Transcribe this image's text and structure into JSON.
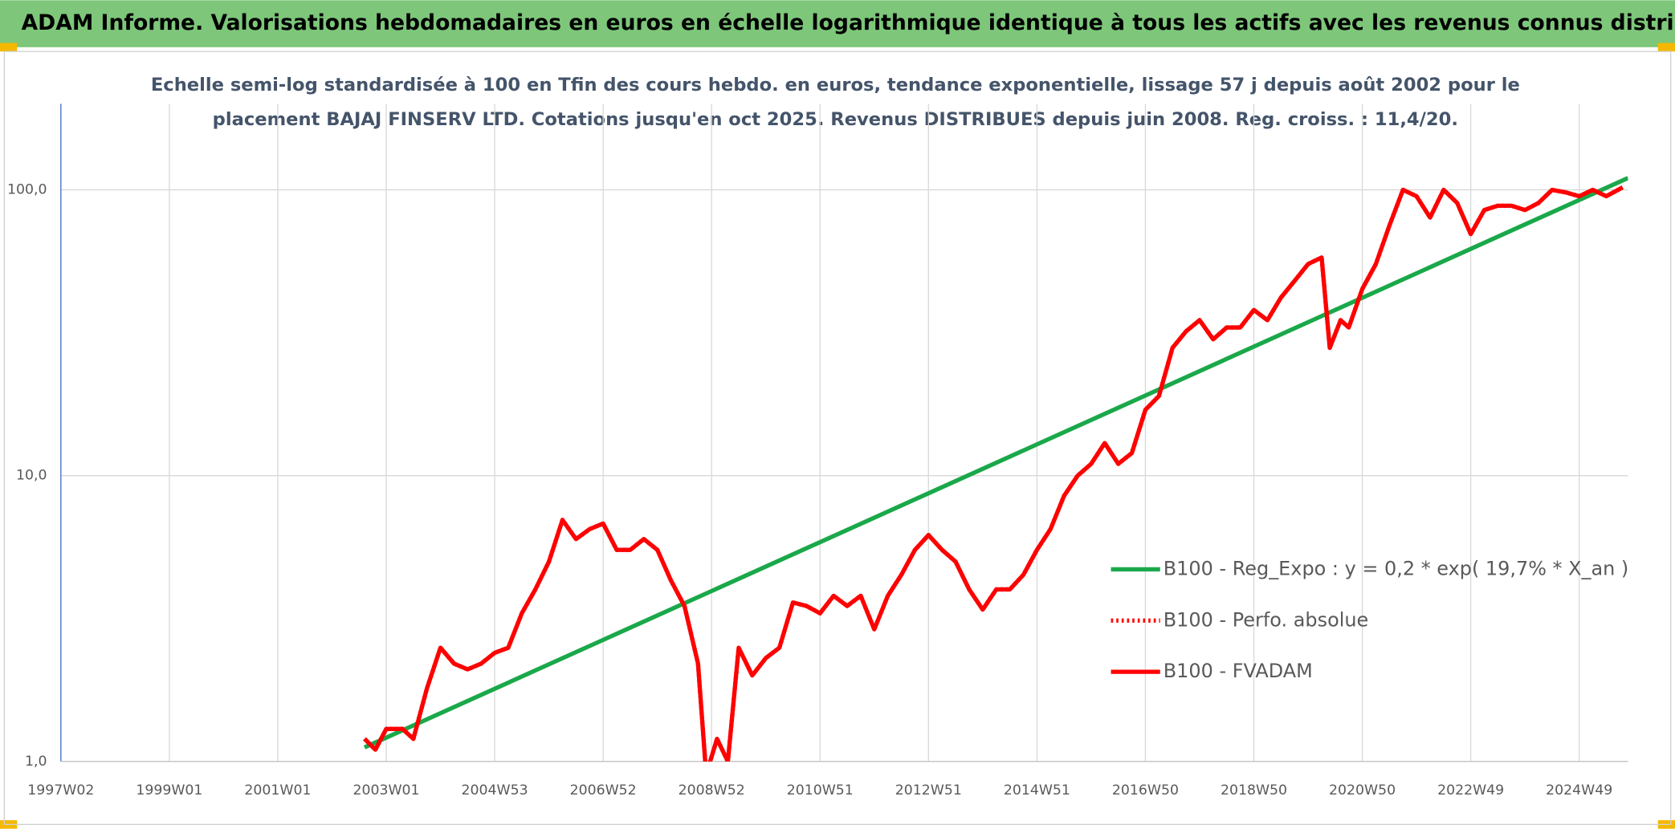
{
  "chart_data": {
    "type": "line",
    "title": "ADAM Informe. Valorisations hebdomadaires en euros en échelle logarithmique identique à tous les actifs avec les revenus connus distribués",
    "subtitle": [
      "Echelle semi-log standardisée à 100 en Tfin des cours hebdo. en euros, tendance exponentielle, lissage 57 j depuis août 2002 pour le",
      "placement BAJAJ FINSERV LTD. Cotations jusqu'en oct 2025. Revenus DISTRIBUES depuis juin 2008. Reg. croiss. : 11,4/20."
    ],
    "log_y": true,
    "grid": true,
    "legend": "right",
    "xlim": [
      1997.0,
      2025.9
    ],
    "xticks": [
      {
        "value": 1997.0,
        "label": "1997W02"
      },
      {
        "value": 1999.0,
        "label": "1999W01"
      },
      {
        "value": 2001.0,
        "label": "2001W01"
      },
      {
        "value": 2003.0,
        "label": "2003W01"
      },
      {
        "value": 2005.0,
        "label": "2004W53"
      },
      {
        "value": 2007.0,
        "label": "2006W52"
      },
      {
        "value": 2009.0,
        "label": "2008W52"
      },
      {
        "value": 2011.0,
        "label": "2010W51"
      },
      {
        "value": 2013.0,
        "label": "2012W51"
      },
      {
        "value": 2015.0,
        "label": "2014W51"
      },
      {
        "value": 2017.0,
        "label": "2016W50"
      },
      {
        "value": 2019.0,
        "label": "2018W50"
      },
      {
        "value": 2021.0,
        "label": "2020W50"
      },
      {
        "value": 2023.0,
        "label": "2022W49"
      },
      {
        "value": 2025.0,
        "label": "2024W49"
      }
    ],
    "ylim": [
      1,
      200
    ],
    "yticks": [
      {
        "value": 1,
        "label": "1,0"
      },
      {
        "value": 10,
        "label": "10,0"
      },
      {
        "value": 100,
        "label": "100,0"
      }
    ],
    "series": [
      {
        "name": "B100 - Reg_Expo : y = 0,2 * exp( 19,7% *  X_an )",
        "color": "#1aa84a",
        "style": "solid",
        "x": [
          2002.6,
          2025.9
        ],
        "values": [
          1.12,
          110
        ]
      },
      {
        "name": "B100 - Perfo. absolue",
        "color": "#ff0000",
        "style": "dotted",
        "x": [
          2002.6,
          2002.8,
          2003.0,
          2003.3,
          2003.5,
          2003.75,
          2004.0,
          2004.25,
          2004.5,
          2004.75,
          2005.0,
          2005.25,
          2005.5,
          2005.75,
          2006.0,
          2006.25,
          2006.5,
          2006.75,
          2007.0,
          2007.25,
          2007.5,
          2007.75,
          2008.0,
          2008.25,
          2008.5,
          2008.75,
          2008.9,
          2009.1,
          2009.3,
          2009.5,
          2009.75,
          2010.0,
          2010.25,
          2010.5,
          2010.75,
          2011.0,
          2011.25,
          2011.5,
          2011.75,
          2012.0,
          2012.25,
          2012.5,
          2012.75,
          2013.0,
          2013.25,
          2013.5,
          2013.75,
          2014.0,
          2014.25,
          2014.5,
          2014.75,
          2015.0,
          2015.25,
          2015.5,
          2015.75,
          2016.0,
          2016.25,
          2016.5,
          2016.75,
          2017.0,
          2017.25,
          2017.5,
          2017.75,
          2018.0,
          2018.25,
          2018.5,
          2018.75,
          2019.0,
          2019.25,
          2019.5,
          2019.75,
          2020.0,
          2020.25,
          2020.4,
          2020.6,
          2020.75,
          2021.0,
          2021.25,
          2021.5,
          2021.75,
          2022.0,
          2022.25,
          2022.5,
          2022.75,
          2023.0,
          2023.25,
          2023.5,
          2023.75,
          2024.0,
          2024.25,
          2024.5,
          2024.75,
          2025.0,
          2025.25,
          2025.5,
          2025.8
        ],
        "values": [
          1.2,
          1.1,
          1.3,
          1.3,
          1.2,
          1.8,
          2.5,
          2.2,
          2.1,
          2.2,
          2.4,
          2.5,
          3.3,
          4.0,
          5.0,
          7.0,
          6.0,
          6.5,
          6.8,
          5.5,
          5.5,
          6.0,
          5.5,
          4.3,
          3.5,
          2.2,
          0.9,
          1.2,
          1.0,
          2.5,
          2.0,
          2.3,
          2.5,
          3.6,
          3.5,
          3.3,
          3.8,
          3.5,
          3.8,
          2.9,
          3.8,
          4.5,
          5.5,
          6.2,
          5.5,
          5.0,
          4.0,
          3.4,
          4.0,
          4.0,
          4.5,
          5.5,
          6.5,
          8.5,
          10,
          11,
          13,
          11,
          12,
          17,
          19,
          28,
          32,
          35,
          30,
          33,
          33,
          38,
          35,
          42,
          48,
          55,
          58,
          28,
          35,
          33,
          45,
          55,
          75,
          100,
          95,
          80,
          100,
          90,
          70,
          85,
          88,
          88,
          85,
          90,
          100,
          98,
          95,
          100,
          95,
          102
        ]
      },
      {
        "name": "B100 - FVADAM",
        "color": "#ff0000",
        "style": "solid",
        "x": [
          2002.6,
          2002.8,
          2003.0,
          2003.3,
          2003.5,
          2003.75,
          2004.0,
          2004.25,
          2004.5,
          2004.75,
          2005.0,
          2005.25,
          2005.5,
          2005.75,
          2006.0,
          2006.25,
          2006.5,
          2006.75,
          2007.0,
          2007.25,
          2007.5,
          2007.75,
          2008.0,
          2008.25,
          2008.5,
          2008.75,
          2008.9,
          2009.1,
          2009.3,
          2009.5,
          2009.75,
          2010.0,
          2010.25,
          2010.5,
          2010.75,
          2011.0,
          2011.25,
          2011.5,
          2011.75,
          2012.0,
          2012.25,
          2012.5,
          2012.75,
          2013.0,
          2013.25,
          2013.5,
          2013.75,
          2014.0,
          2014.25,
          2014.5,
          2014.75,
          2015.0,
          2015.25,
          2015.5,
          2015.75,
          2016.0,
          2016.25,
          2016.5,
          2016.75,
          2017.0,
          2017.25,
          2017.5,
          2017.75,
          2018.0,
          2018.25,
          2018.5,
          2018.75,
          2019.0,
          2019.25,
          2019.5,
          2019.75,
          2020.0,
          2020.25,
          2020.4,
          2020.6,
          2020.75,
          2021.0,
          2021.25,
          2021.5,
          2021.75,
          2022.0,
          2022.25,
          2022.5,
          2022.75,
          2023.0,
          2023.25,
          2023.5,
          2023.75,
          2024.0,
          2024.25,
          2024.5,
          2024.75,
          2025.0,
          2025.25,
          2025.5,
          2025.8
        ],
        "values": [
          1.2,
          1.1,
          1.3,
          1.3,
          1.2,
          1.8,
          2.5,
          2.2,
          2.1,
          2.2,
          2.4,
          2.5,
          3.3,
          4.0,
          5.0,
          7.0,
          6.0,
          6.5,
          6.8,
          5.5,
          5.5,
          6.0,
          5.5,
          4.3,
          3.5,
          2.2,
          0.9,
          1.2,
          1.0,
          2.5,
          2.0,
          2.3,
          2.5,
          3.6,
          3.5,
          3.3,
          3.8,
          3.5,
          3.8,
          2.9,
          3.8,
          4.5,
          5.5,
          6.2,
          5.5,
          5.0,
          4.0,
          3.4,
          4.0,
          4.0,
          4.5,
          5.5,
          6.5,
          8.5,
          10,
          11,
          13,
          11,
          12,
          17,
          19,
          28,
          32,
          35,
          30,
          33,
          33,
          38,
          35,
          42,
          48,
          55,
          58,
          28,
          35,
          33,
          45,
          55,
          75,
          100,
          95,
          80,
          100,
          90,
          70,
          85,
          88,
          88,
          85,
          90,
          100,
          98,
          95,
          100,
          95,
          102
        ]
      }
    ]
  }
}
